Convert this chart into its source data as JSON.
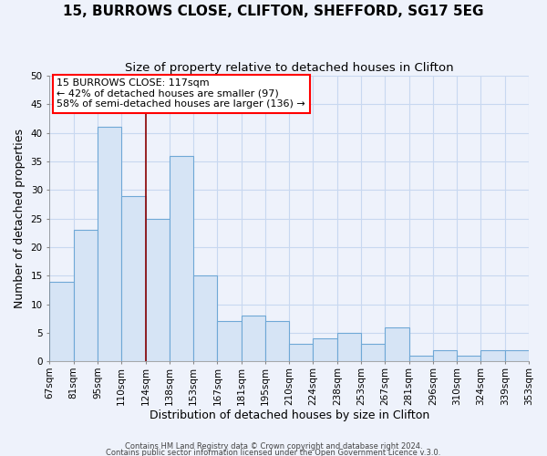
{
  "title": "15, BURROWS CLOSE, CLIFTON, SHEFFORD, SG17 5EG",
  "subtitle": "Size of property relative to detached houses in Clifton",
  "xlabel": "Distribution of detached houses by size in Clifton",
  "ylabel": "Number of detached properties",
  "bar_color": "#d6e4f5",
  "bar_edge_color": "#6fa8d6",
  "bins": [
    "67sqm",
    "81sqm",
    "95sqm",
    "110sqm",
    "124sqm",
    "138sqm",
    "153sqm",
    "167sqm",
    "181sqm",
    "195sqm",
    "210sqm",
    "224sqm",
    "238sqm",
    "253sqm",
    "267sqm",
    "281sqm",
    "296sqm",
    "310sqm",
    "324sqm",
    "339sqm",
    "353sqm"
  ],
  "values": [
    14,
    23,
    41,
    29,
    25,
    36,
    15,
    7,
    8,
    7,
    3,
    4,
    5,
    3,
    6,
    1,
    2,
    1,
    2,
    2
  ],
  "ylim": [
    0,
    50
  ],
  "yticks": [
    0,
    5,
    10,
    15,
    20,
    25,
    30,
    35,
    40,
    45,
    50
  ],
  "red_line_bin_index": 3,
  "annotation_line1": "15 BURROWS CLOSE: 117sqm",
  "annotation_line2": "← 42% of detached houses are smaller (97)",
  "annotation_line3": "58% of semi-detached houses are larger (136) →",
  "footer1": "Contains HM Land Registry data © Crown copyright and database right 2024.",
  "footer2": "Contains public sector information licensed under the Open Government Licence v.3.0.",
  "background_color": "#eef2fb",
  "grid_color": "#c8d8f0",
  "title_fontsize": 11,
  "subtitle_fontsize": 9.5,
  "axis_label_fontsize": 9,
  "tick_fontsize": 7.5,
  "footer_fontsize": 6
}
